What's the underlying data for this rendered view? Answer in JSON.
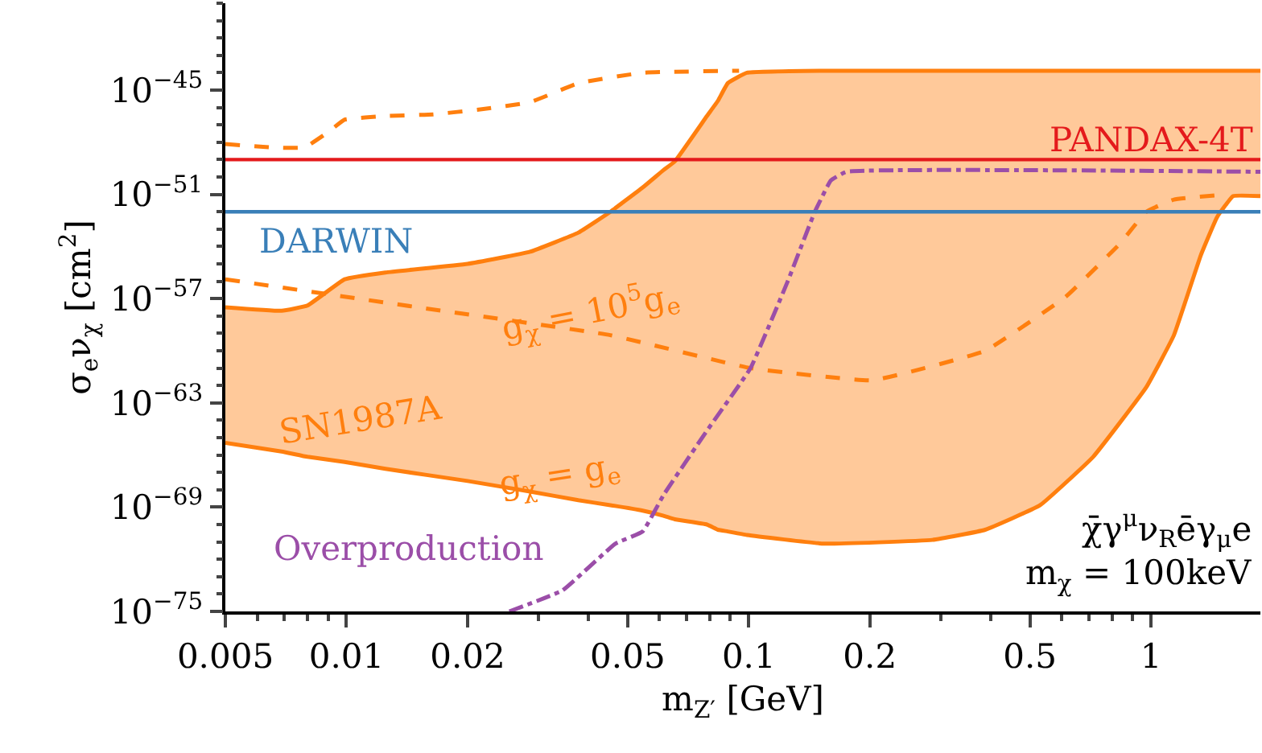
{
  "chart_data": {
    "type": "line",
    "xlabel": "m$_{Z′}$ [GeV]",
    "ylabel": "σ$_{e}$ν$_{χ}$ [cm$^{2}$]",
    "log": "xy",
    "xlim": [
      0.005,
      1.87
    ],
    "ylim": [
      1e-75,
      1e-40
    ],
    "xticks": [
      0.005,
      0.01,
      0.02,
      0.05,
      0.1,
      0.2,
      0.5,
      1
    ],
    "yticks": [
      {
        "value": 1e-75,
        "label": "10$^{−75}$"
      },
      {
        "value": 1e-69,
        "label": "10$^{−69}$"
      },
      {
        "value": 1e-63,
        "label": "10$^{−63}$"
      },
      {
        "value": 1e-57,
        "label": "10$^{−57}$"
      },
      {
        "value": 1e-51,
        "label": "10$^{−51}$"
      },
      {
        "value": 1e-45,
        "label": "10$^{−45}$"
      }
    ],
    "series": [
      {
        "color": "#ff7f0e",
        "line_style": "solid",
        "x": [
          0.005,
          0.0069,
          0.008,
          0.0099,
          0.0125,
          0.02,
          0.0286,
          0.0377,
          0.0453,
          0.0545,
          0.0614,
          0.0655,
          0.0787,
          0.0839,
          0.0887,
          0.099,
          0.154,
          0.286,
          0.387,
          0.53,
          0.718,
          0.973,
          1.14,
          1.33,
          1.46,
          1.6,
          1.87
        ],
        "values": [
          3.2e-58,
          2e-58,
          4e-58,
          1.3e-56,
          3.2e-56,
          1e-55,
          5e-55,
          6.3e-54,
          1e-52,
          2.5e-51,
          2.5e-50,
          7.9e-50,
          3.2e-47,
          2.5e-46,
          2.5e-45,
          1e-44,
          1.3e-44,
          1.3e-44,
          1.3e-44,
          1.3e-44,
          1.3e-44,
          1.3e-44,
          1.3e-44,
          1.3e-44,
          1.3e-44,
          1.3e-44,
          1.3e-44
        ],
        "upper": [
          3.2e-58,
          2e-58,
          4e-58,
          1.3e-56,
          3.2e-56,
          1e-55,
          5e-55,
          6.3e-54,
          1e-52,
          2.5e-51,
          2.5e-50,
          7.9e-50,
          3.2e-47,
          2.5e-46,
          2.5e-45,
          1e-44,
          1.3e-44,
          1.3e-44,
          1.3e-44,
          1.3e-44,
          1.3e-44,
          1.3e-44,
          1.3e-44,
          1.3e-44,
          1.3e-44,
          1.3e-44,
          1.3e-44
        ],
        "lower": [
          5e-66,
          1.6e-66,
          7.9e-67,
          4e-67,
          1.6e-67,
          3.2e-68,
          7.9e-69,
          2.5e-69,
          1.3e-69,
          6.3e-70,
          3.2e-70,
          2e-70,
          1e-70,
          5e-71,
          4e-71,
          2.5e-71,
          7.9e-72,
          1.3e-71,
          5e-71,
          1.3e-69,
          7.9e-67,
          7.9e-63,
          7.9e-60,
          3.2e-55,
          5e-53,
          7.9e-52,
          7.9e-52
        ]
      },
      {
        "name": "g$_{χ}$ = g$_{e}$",
        "color": "#ff7f0e",
        "line_style": "solid",
        "x": [
          0.005,
          0.0069,
          0.008,
          0.0099,
          0.0125,
          0.02,
          0.0286,
          0.0377,
          0.0453,
          0.0545,
          0.0614,
          0.0655,
          0.0787,
          0.0839,
          0.0887,
          0.099,
          0.154,
          0.286,
          0.387,
          0.53,
          0.718,
          0.973,
          1.14,
          1.33,
          1.46,
          1.6,
          1.87
        ],
        "values": [
          5e-66,
          1.6e-66,
          7.9e-67,
          4e-67,
          1.6e-67,
          3.2e-68,
          7.9e-69,
          2.5e-69,
          1.3e-69,
          6.3e-70,
          3.2e-70,
          2e-70,
          1e-70,
          5e-71,
          4e-71,
          2.5e-71,
          7.9e-72,
          1.3e-71,
          5e-71,
          1.3e-69,
          7.9e-67,
          7.9e-63,
          7.9e-60,
          3.2e-55,
          5e-53,
          7.9e-52,
          7.9e-52
        ]
      },
      {
        "color": "#ff7f0e",
        "line_style": "dashed",
        "x": [
          0.005,
          0.00655,
          0.00787,
          0.00903,
          0.0099,
          0.0125,
          0.0164,
          0.0217,
          0.0286,
          0.0377,
          0.0545,
          0.0946
        ],
        "values": [
          7.9e-49,
          5e-49,
          5e-49,
          4e-48,
          2e-47,
          3.2e-47,
          4e-47,
          7.9e-47,
          2e-46,
          2.5e-45,
          1e-44,
          1.3e-44
        ]
      },
      {
        "name": "g$_{χ}$ = 10$^{5}$g$_{e}$",
        "color": "#ff7f0e",
        "line_style": "dashed",
        "x": [
          0.005,
          0.015,
          0.0453,
          0.101,
          0.203,
          0.387,
          0.614,
          0.84,
          0.973,
          1.14,
          1.54
        ],
        "values": [
          1.3e-56,
          3.2e-58,
          7.9e-60,
          1e-61,
          2e-62,
          1e-60,
          1.3e-57,
          1.6e-54,
          1e-52,
          5e-52,
          1e-51
        ]
      },
      {
        "name": "Overproduction",
        "color": "#9b4ea8",
        "line_style": "dashdot",
        "x": [
          0.0254,
          0.0344,
          0.0466,
          0.0545,
          0.0614,
          0.0787,
          0.101,
          0.125,
          0.146,
          0.16,
          0.175,
          1.87
        ],
        "values": [
          1e-75,
          1.6e-74,
          7.9e-72,
          4e-71,
          5e-69,
          2.5e-65,
          1e-61,
          1e-56,
          1e-52,
          6.3e-51,
          2e-50,
          2e-50
        ]
      }
    ],
    "ref_lines": [
      {
        "axis": "y",
        "value": 1e-49,
        "label": "PANDAX-4T",
        "color": "#e41a1c"
      },
      {
        "axis": "y",
        "value": 1e-52,
        "label": "DARWIN",
        "color": "#3a7fb8"
      }
    ],
    "annotations": [
      "SN1987A",
      "χ̄γ$^{μ}$ν$_{R}$ēγ$_{μ}$e",
      "m$_{χ}$ = 100keV"
    ]
  }
}
